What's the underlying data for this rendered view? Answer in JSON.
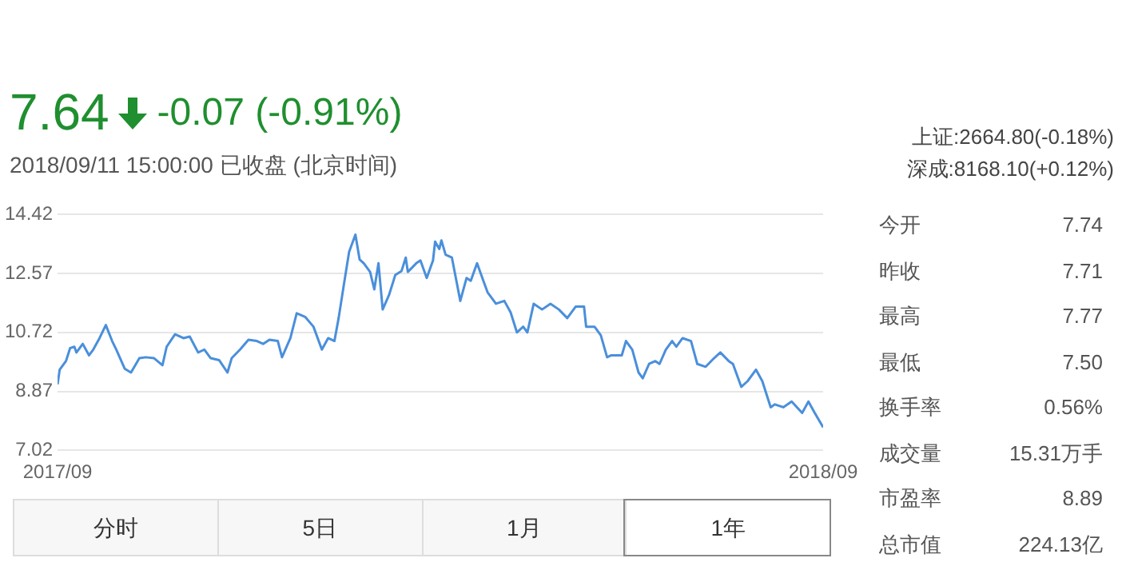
{
  "chart_data": {
    "type": "line",
    "title": "7.64",
    "subtitle": "-0.07 (-0.91%)",
    "annotations": [
      "2018/09/11 15:00:00 已收盘 (北京时间)",
      "上证:2664.80(-0.18%)",
      "深成:8168.10(+0.12%)",
      "今开",
      "7.74",
      "昨收",
      "7.71",
      "最高",
      "7.77",
      "最低",
      "7.50",
      "换手率",
      "0.56%",
      "成交量",
      "15.31万手",
      "市盈率",
      "8.89",
      "总市值",
      "224.13亿",
      "分时",
      "5日",
      "1月",
      "1年"
    ],
    "x": [
      "2017-09-11",
      "2017-09-12",
      "2017-09-15",
      "2017-09-17",
      "2017-09-19",
      "2017-09-20",
      "2017-09-23",
      "2017-09-26",
      "2017-09-28",
      "2017-10-01",
      "2017-10-04",
      "2017-10-07",
      "2017-10-09",
      "2017-10-13",
      "2017-10-16",
      "2017-10-20",
      "2017-10-23",
      "2017-10-27",
      "2017-10-31",
      "2017-11-02",
      "2017-11-06",
      "2017-11-10",
      "2017-11-13",
      "2017-11-17",
      "2017-11-20",
      "2017-11-23",
      "2017-11-27",
      "2017-12-01",
      "2017-12-03",
      "2017-12-07",
      "2017-12-11",
      "2017-12-15",
      "2017-12-18",
      "2017-12-21",
      "2017-12-25",
      "2017-12-27",
      "2017-12-31",
      "2018-01-03",
      "2018-01-07",
      "2018-01-11",
      "2018-01-15",
      "2018-01-18",
      "2018-01-21",
      "2018-01-23",
      "2018-01-26",
      "2018-01-28",
      "2018-01-31",
      "2018-02-02",
      "2018-02-04",
      "2018-02-07",
      "2018-02-09",
      "2018-02-11",
      "2018-02-13",
      "2018-02-16",
      "2018-02-19",
      "2018-02-22",
      "2018-02-24",
      "2018-02-25",
      "2018-03-01",
      "2018-03-03",
      "2018-03-06",
      "2018-03-09",
      "2018-03-10",
      "2018-03-12",
      "2018-03-13",
      "2018-03-15",
      "2018-03-18",
      "2018-03-22",
      "2018-03-25",
      "2018-03-27",
      "2018-03-30",
      "2018-04-02",
      "2018-04-04",
      "2018-04-08",
      "2018-04-12",
      "2018-04-15",
      "2018-04-18",
      "2018-04-21",
      "2018-04-23",
      "2018-04-26",
      "2018-04-30",
      "2018-05-04",
      "2018-05-08",
      "2018-05-12",
      "2018-05-16",
      "2018-05-20",
      "2018-05-21",
      "2018-05-25",
      "2018-05-28",
      "2018-05-31",
      "2018-06-02",
      "2018-06-07",
      "2018-06-09",
      "2018-06-12",
      "2018-06-15",
      "2018-06-17",
      "2018-06-20",
      "2018-06-23",
      "2018-06-25",
      "2018-06-28",
      "2018-07-01",
      "2018-07-03",
      "2018-07-06",
      "2018-07-10",
      "2018-07-13",
      "2018-07-17",
      "2018-07-21",
      "2018-07-24",
      "2018-07-28",
      "2018-07-30",
      "2018-08-03",
      "2018-08-06",
      "2018-08-10",
      "2018-08-13",
      "2018-08-17",
      "2018-08-19",
      "2018-08-23",
      "2018-08-27",
      "2018-09-01",
      "2018-09-04",
      "2018-09-07",
      "2018-09-11"
    ],
    "series": [
      {
        "color": "#4a8fdb",
        "values": [
          9.09,
          9.55,
          9.82,
          10.23,
          10.27,
          10.09,
          10.36,
          10.0,
          10.18,
          10.54,
          10.95,
          10.45,
          10.18,
          9.58,
          9.46,
          9.91,
          9.94,
          9.91,
          9.69,
          10.27,
          10.66,
          10.54,
          10.59,
          10.09,
          10.18,
          9.91,
          9.85,
          9.46,
          9.91,
          10.18,
          10.49,
          10.45,
          10.36,
          10.49,
          10.45,
          9.94,
          10.54,
          11.32,
          11.21,
          10.9,
          10.18,
          10.54,
          10.45,
          11.17,
          12.43,
          13.25,
          13.79,
          13.01,
          12.89,
          12.62,
          12.07,
          12.89,
          11.44,
          11.89,
          12.52,
          12.65,
          13.07,
          12.62,
          12.89,
          12.98,
          12.43,
          12.98,
          13.57,
          13.34,
          13.61,
          13.16,
          13.07,
          11.71,
          12.43,
          12.34,
          12.89,
          12.34,
          11.98,
          11.62,
          11.71,
          11.35,
          10.72,
          10.9,
          10.72,
          11.62,
          11.44,
          11.62,
          11.44,
          11.17,
          11.53,
          11.53,
          10.9,
          10.9,
          10.63,
          9.94,
          10.0,
          10.0,
          10.45,
          10.18,
          9.46,
          9.28,
          9.73,
          9.82,
          9.73,
          10.18,
          10.45,
          10.27,
          10.54,
          10.45,
          9.73,
          9.64,
          9.91,
          10.09,
          9.82,
          9.73,
          9.01,
          9.19,
          9.55,
          9.19,
          8.37,
          8.46,
          8.37,
          8.55,
          8.19,
          8.55,
          8.19,
          7.74
        ]
      }
    ],
    "xlim": [
      "2017-09-11",
      "2018-09-11"
    ],
    "xticks": [
      {
        "value": "2017-09-11",
        "label": "2017/09"
      },
      {
        "value": "2018-09-11",
        "label": "2018/09"
      }
    ],
    "ylim": [
      7.02,
      14.42
    ],
    "yticks": [
      7.02,
      8.87,
      10.72,
      12.57,
      14.42
    ],
    "grid": "y",
    "legend": false,
    "marker": "none",
    "line_style": "solid"
  }
}
